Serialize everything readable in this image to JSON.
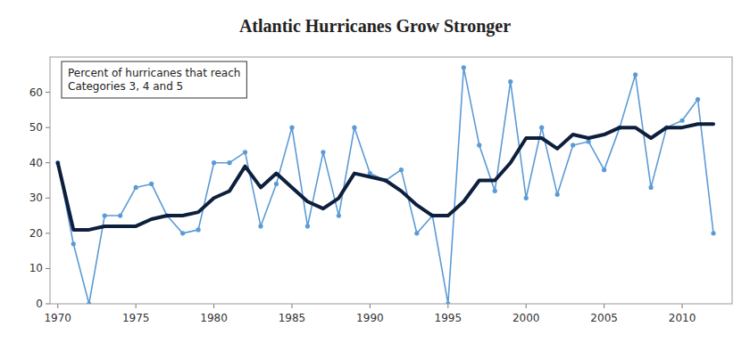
{
  "chart_data": {
    "type": "line",
    "title": "Atlantic Hurricanes Grow Stronger",
    "annotations": [
      "Percent of hurricanes that reach",
      "Categories 3, 4 and 5"
    ],
    "x": [
      1970,
      1971,
      1972,
      1973,
      1974,
      1975,
      1976,
      1977,
      1978,
      1979,
      1980,
      1981,
      1982,
      1983,
      1984,
      1985,
      1986,
      1987,
      1988,
      1989,
      1990,
      1991,
      1992,
      1993,
      1994,
      1995,
      1996,
      1997,
      1998,
      1999,
      2000,
      2001,
      2002,
      2003,
      2004,
      2005,
      2006,
      2007,
      2008,
      2009,
      2010,
      2011,
      2012
    ],
    "series": [
      {
        "color": "#5b9bd5",
        "marker": "circle",
        "line_style": "solid",
        "values": [
          40,
          17,
          0,
          25,
          25,
          33,
          34,
          25,
          20,
          21,
          40,
          40,
          43,
          22,
          34,
          50,
          22,
          43,
          25,
          50,
          37,
          35,
          38,
          20,
          25,
          0,
          67,
          45,
          32,
          63,
          30,
          50,
          31,
          45,
          46,
          38,
          50,
          65,
          33,
          50,
          52,
          58,
          20
        ]
      },
      {
        "color": "#0d1f3c",
        "marker": "none",
        "line_style": "solid",
        "values": [
          40,
          21,
          21,
          22,
          22,
          22,
          24,
          25,
          25,
          26,
          30,
          32,
          39,
          33,
          37,
          33,
          29,
          27,
          30,
          37,
          36,
          35,
          32,
          28,
          25,
          25,
          29,
          35,
          35,
          40,
          47,
          47,
          44,
          48,
          47,
          48,
          50,
          50,
          47,
          50,
          50,
          51,
          51
        ]
      }
    ],
    "xlim": [
      1969.5,
      2013.2
    ],
    "xticks": [
      1970,
      1975,
      1980,
      1985,
      1990,
      1995,
      2000,
      2005,
      2010
    ],
    "ylim": [
      0,
      70
    ],
    "yticks": [
      0,
      10,
      20,
      30,
      40,
      50,
      60
    ],
    "grid": false
  }
}
